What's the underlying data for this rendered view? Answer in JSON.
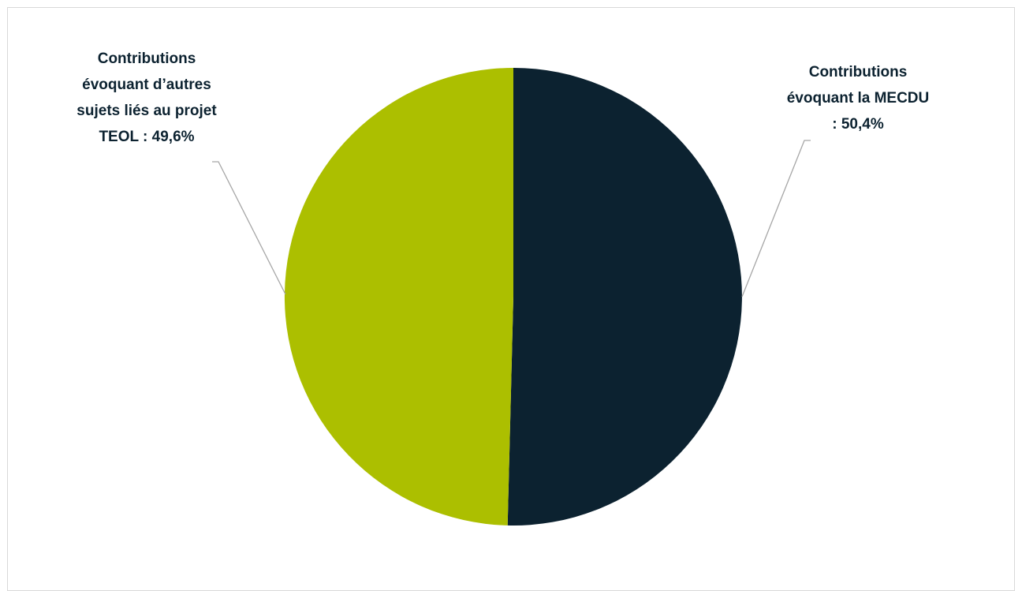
{
  "chart_data": {
    "type": "pie",
    "title": "",
    "slices": [
      {
        "label": "Contributions\névoquant la MECDU\n: 50,4%",
        "value": 50.4,
        "color": "#0c2230"
      },
      {
        "label": "Contributions\névoquant d’autres\nsujets liés au projet\nTEOL : 49,6%",
        "value": 49.6,
        "color": "#acbf00"
      }
    ],
    "start": "12 o'clock",
    "direction": "clockwise",
    "legend": "none",
    "leader_line_color": "#a6a6a6"
  }
}
